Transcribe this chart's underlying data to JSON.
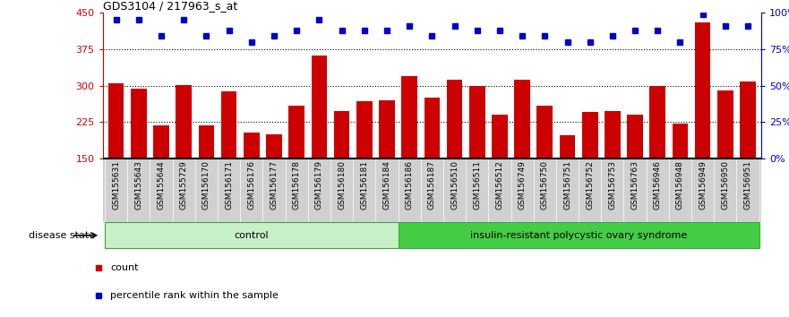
{
  "title": "GDS3104 / 217963_s_at",
  "samples": [
    "GSM155631",
    "GSM155643",
    "GSM155644",
    "GSM155729",
    "GSM156170",
    "GSM156171",
    "GSM156176",
    "GSM156177",
    "GSM156178",
    "GSM156179",
    "GSM156180",
    "GSM156181",
    "GSM156184",
    "GSM156186",
    "GSM156187",
    "GSM156510",
    "GSM156511",
    "GSM156512",
    "GSM156749",
    "GSM156750",
    "GSM156751",
    "GSM156752",
    "GSM156753",
    "GSM156763",
    "GSM156946",
    "GSM156948",
    "GSM156949",
    "GSM156950",
    "GSM156951"
  ],
  "counts": [
    305,
    294,
    218,
    301,
    218,
    289,
    203,
    200,
    258,
    362,
    248,
    268,
    270,
    320,
    275,
    312,
    300,
    240,
    312,
    258,
    198,
    245,
    248,
    240,
    300,
    222,
    430,
    290,
    308
  ],
  "percentile_ranks": [
    95,
    95,
    84,
    95,
    84,
    88,
    80,
    84,
    88,
    95,
    88,
    88,
    88,
    91,
    84,
    91,
    88,
    88,
    84,
    84,
    80,
    80,
    84,
    88,
    88,
    80,
    99,
    91,
    91
  ],
  "n_control": 13,
  "control_label": "control",
  "irpcos_label": "insulin-resistant polycystic ovary syndrome",
  "disease_state_label": "disease state",
  "ymin": 150,
  "ymax": 450,
  "yticks_left": [
    150,
    225,
    300,
    375,
    450
  ],
  "yticks_right": [
    0,
    25,
    50,
    75,
    100
  ],
  "bar_color": "#cc0000",
  "dot_color": "#0000cc",
  "grid_lines": [
    225,
    300,
    375
  ],
  "ctrl_color": "#c8f0c8",
  "irp_color": "#44cc44",
  "tick_label_bg": "#d0d0d0",
  "legend_count_color": "#cc0000",
  "legend_pct_color": "#0000cc"
}
